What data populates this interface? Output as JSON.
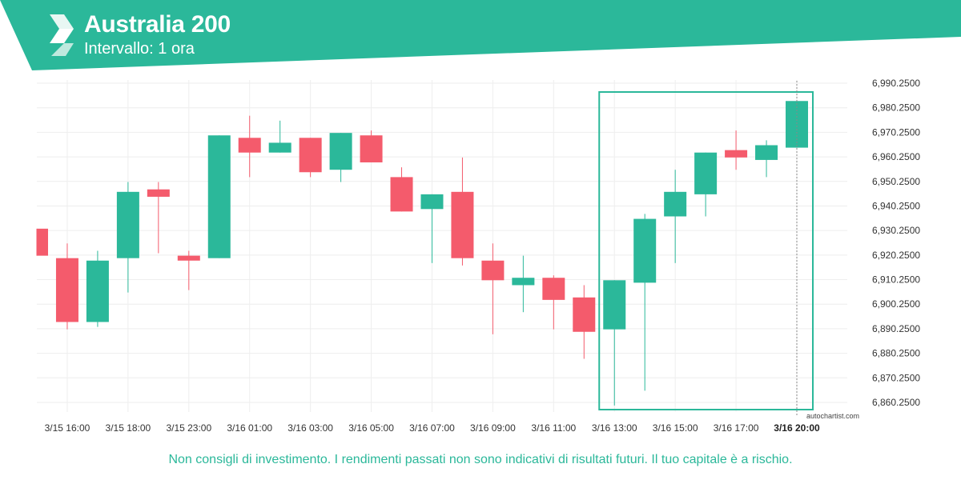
{
  "header": {
    "title": "Australia 200",
    "subtitle": "Intervallo: 1 ora"
  },
  "footer": {
    "disclaimer": "Non consigli di investimento. I rendimenti passati non sono indicativi di risultati futuri. Il tuo capitale è a rischio."
  },
  "watermark": "autochartist.com",
  "colors": {
    "brand": "#2bb89a",
    "up": "#2bb89a",
    "down": "#f45b6c",
    "grid": "#eeeeee"
  },
  "chart_data": {
    "type": "candlestick",
    "ylim": [
      6856,
      6993
    ],
    "y_ticks": [
      "6,990.2500",
      "6,980.2500",
      "6,970.2500",
      "6,960.2500",
      "6,950.2500",
      "6,940.2500",
      "6,930.2500",
      "6,920.2500",
      "6,910.2500",
      "6,900.2500",
      "6,890.2500",
      "6,880.2500",
      "6,870.2500",
      "6,860.2500"
    ],
    "x_ticks": [
      {
        "label": "3/15 16:00",
        "index": 1
      },
      {
        "label": "3/15 18:00",
        "index": 3
      },
      {
        "label": "3/15 23:00",
        "index": 5
      },
      {
        "label": "3/16 01:00",
        "index": 7
      },
      {
        "label": "3/16 03:00",
        "index": 9
      },
      {
        "label": "3/16 05:00",
        "index": 11
      },
      {
        "label": "3/16 07:00",
        "index": 13
      },
      {
        "label": "3/16 09:00",
        "index": 15
      },
      {
        "label": "3/16 11:00",
        "index": 17
      },
      {
        "label": "3/16 13:00",
        "index": 19
      },
      {
        "label": "3/16 15:00",
        "index": 21
      },
      {
        "label": "3/16 17:00",
        "index": 23
      },
      {
        "label": "3/16 20:00",
        "index": 25,
        "bold": true
      }
    ],
    "candles": [
      {
        "open": 6931.0,
        "high": 6931.0,
        "low": 6920.0,
        "close": 6920.0
      },
      {
        "open": 6919.0,
        "high": 6925.0,
        "low": 6890.0,
        "close": 6893.0
      },
      {
        "open": 6893.0,
        "high": 6922.0,
        "low": 6891.0,
        "close": 6918.0
      },
      {
        "open": 6919.0,
        "high": 6950.0,
        "low": 6905.0,
        "close": 6946.0
      },
      {
        "open": 6947.0,
        "high": 6950.0,
        "low": 6921.0,
        "close": 6944.0
      },
      {
        "open": 6920.0,
        "high": 6922.0,
        "low": 6906.0,
        "close": 6918.0
      },
      {
        "open": 6919.0,
        "high": 6969.0,
        "low": 6919.0,
        "close": 6969.0
      },
      {
        "open": 6968.0,
        "high": 6977.0,
        "low": 6952.0,
        "close": 6962.0
      },
      {
        "open": 6962.0,
        "high": 6975.0,
        "low": 6962.0,
        "close": 6966.0
      },
      {
        "open": 6968.0,
        "high": 6968.0,
        "low": 6952.0,
        "close": 6954.0
      },
      {
        "open": 6955.0,
        "high": 6970.0,
        "low": 6950.0,
        "close": 6970.0
      },
      {
        "open": 6969.0,
        "high": 6971.0,
        "low": 6958.0,
        "close": 6958.0
      },
      {
        "open": 6952.0,
        "high": 6956.0,
        "low": 6938.0,
        "close": 6938.0
      },
      {
        "open": 6939.0,
        "high": 6945.0,
        "low": 6917.0,
        "close": 6945.0
      },
      {
        "open": 6946.0,
        "high": 6960.0,
        "low": 6916.0,
        "close": 6919.0
      },
      {
        "open": 6918.0,
        "high": 6925.0,
        "low": 6888.0,
        "close": 6910.0
      },
      {
        "open": 6908.0,
        "high": 6920.0,
        "low": 6897.0,
        "close": 6911.0
      },
      {
        "open": 6911.0,
        "high": 6912.0,
        "low": 6890.0,
        "close": 6902.0
      },
      {
        "open": 6903.0,
        "high": 6908.0,
        "low": 6878.0,
        "close": 6889.0
      },
      {
        "open": 6890.0,
        "high": 6910.0,
        "low": 6859.0,
        "close": 6910.0
      },
      {
        "open": 6909.0,
        "high": 6937.0,
        "low": 6865.0,
        "close": 6935.0
      },
      {
        "open": 6936.0,
        "high": 6955.0,
        "low": 6917.0,
        "close": 6946.0
      },
      {
        "open": 6945.0,
        "high": 6962.0,
        "low": 6936.0,
        "close": 6962.0
      },
      {
        "open": 6963.0,
        "high": 6971.0,
        "low": 6955.0,
        "close": 6960.0
      },
      {
        "open": 6959.0,
        "high": 6967.0,
        "low": 6952.0,
        "close": 6965.0
      },
      {
        "open": 6964.0,
        "high": 6983.0,
        "low": 6964.0,
        "close": 6983.0
      }
    ],
    "highlight": {
      "from_index": 19,
      "to_index": 25
    },
    "cursor_index": 25,
    "grid": true
  }
}
